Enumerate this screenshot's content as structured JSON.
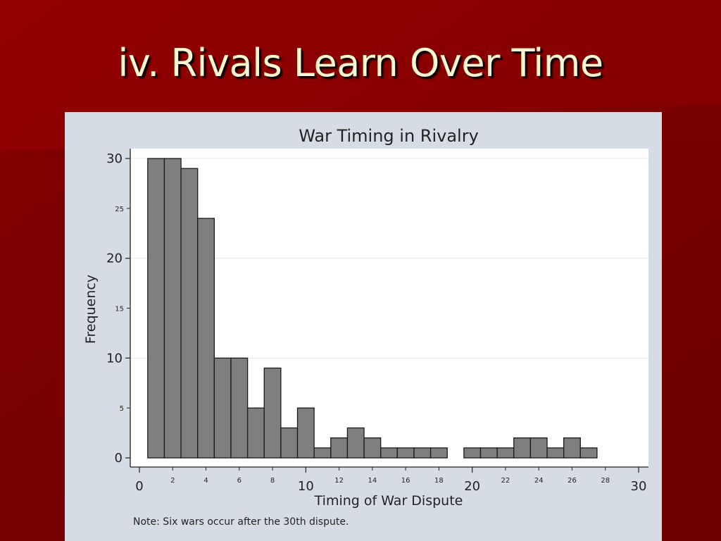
{
  "slide": {
    "title": "iv. Rivals Learn Over Time"
  },
  "colors": {
    "background": "#7a0000",
    "title_text": "#fdf7cf",
    "chart_panel": "#d6dce6",
    "plot_area": "#ffffff",
    "bar_fill": "#7f7f7f",
    "bar_stroke": "#1a1a1a",
    "grid": "#e3e8ee"
  },
  "chart_data": {
    "type": "bar",
    "title": "War Timing in Rivalry",
    "xlabel": "Timing of War Dispute",
    "ylabel": "Frequency",
    "note": "Note:  Six wars occur after the 30th dispute.",
    "x": [
      1,
      2,
      3,
      4,
      5,
      6,
      7,
      8,
      9,
      10,
      11,
      12,
      13,
      14,
      15,
      16,
      17,
      18,
      20,
      21,
      22,
      23,
      24,
      25,
      26,
      27
    ],
    "values": [
      30,
      30,
      29,
      24,
      10,
      10,
      5,
      9,
      3,
      5,
      1,
      2,
      3,
      2,
      1,
      1,
      1,
      1,
      1,
      1,
      1,
      2,
      2,
      1,
      2,
      1
    ],
    "bar_width": 1,
    "xlim": [
      0,
      30
    ],
    "ylim": [
      0,
      30
    ],
    "x_ticks_major": [
      0,
      10,
      20,
      30
    ],
    "x_ticks_minor": [
      2,
      4,
      6,
      8,
      12,
      14,
      16,
      18,
      22,
      24,
      26,
      28
    ],
    "y_ticks_major": [
      0,
      10,
      20,
      30
    ],
    "y_ticks_minor": [
      5,
      15,
      25
    ],
    "grid": true
  }
}
